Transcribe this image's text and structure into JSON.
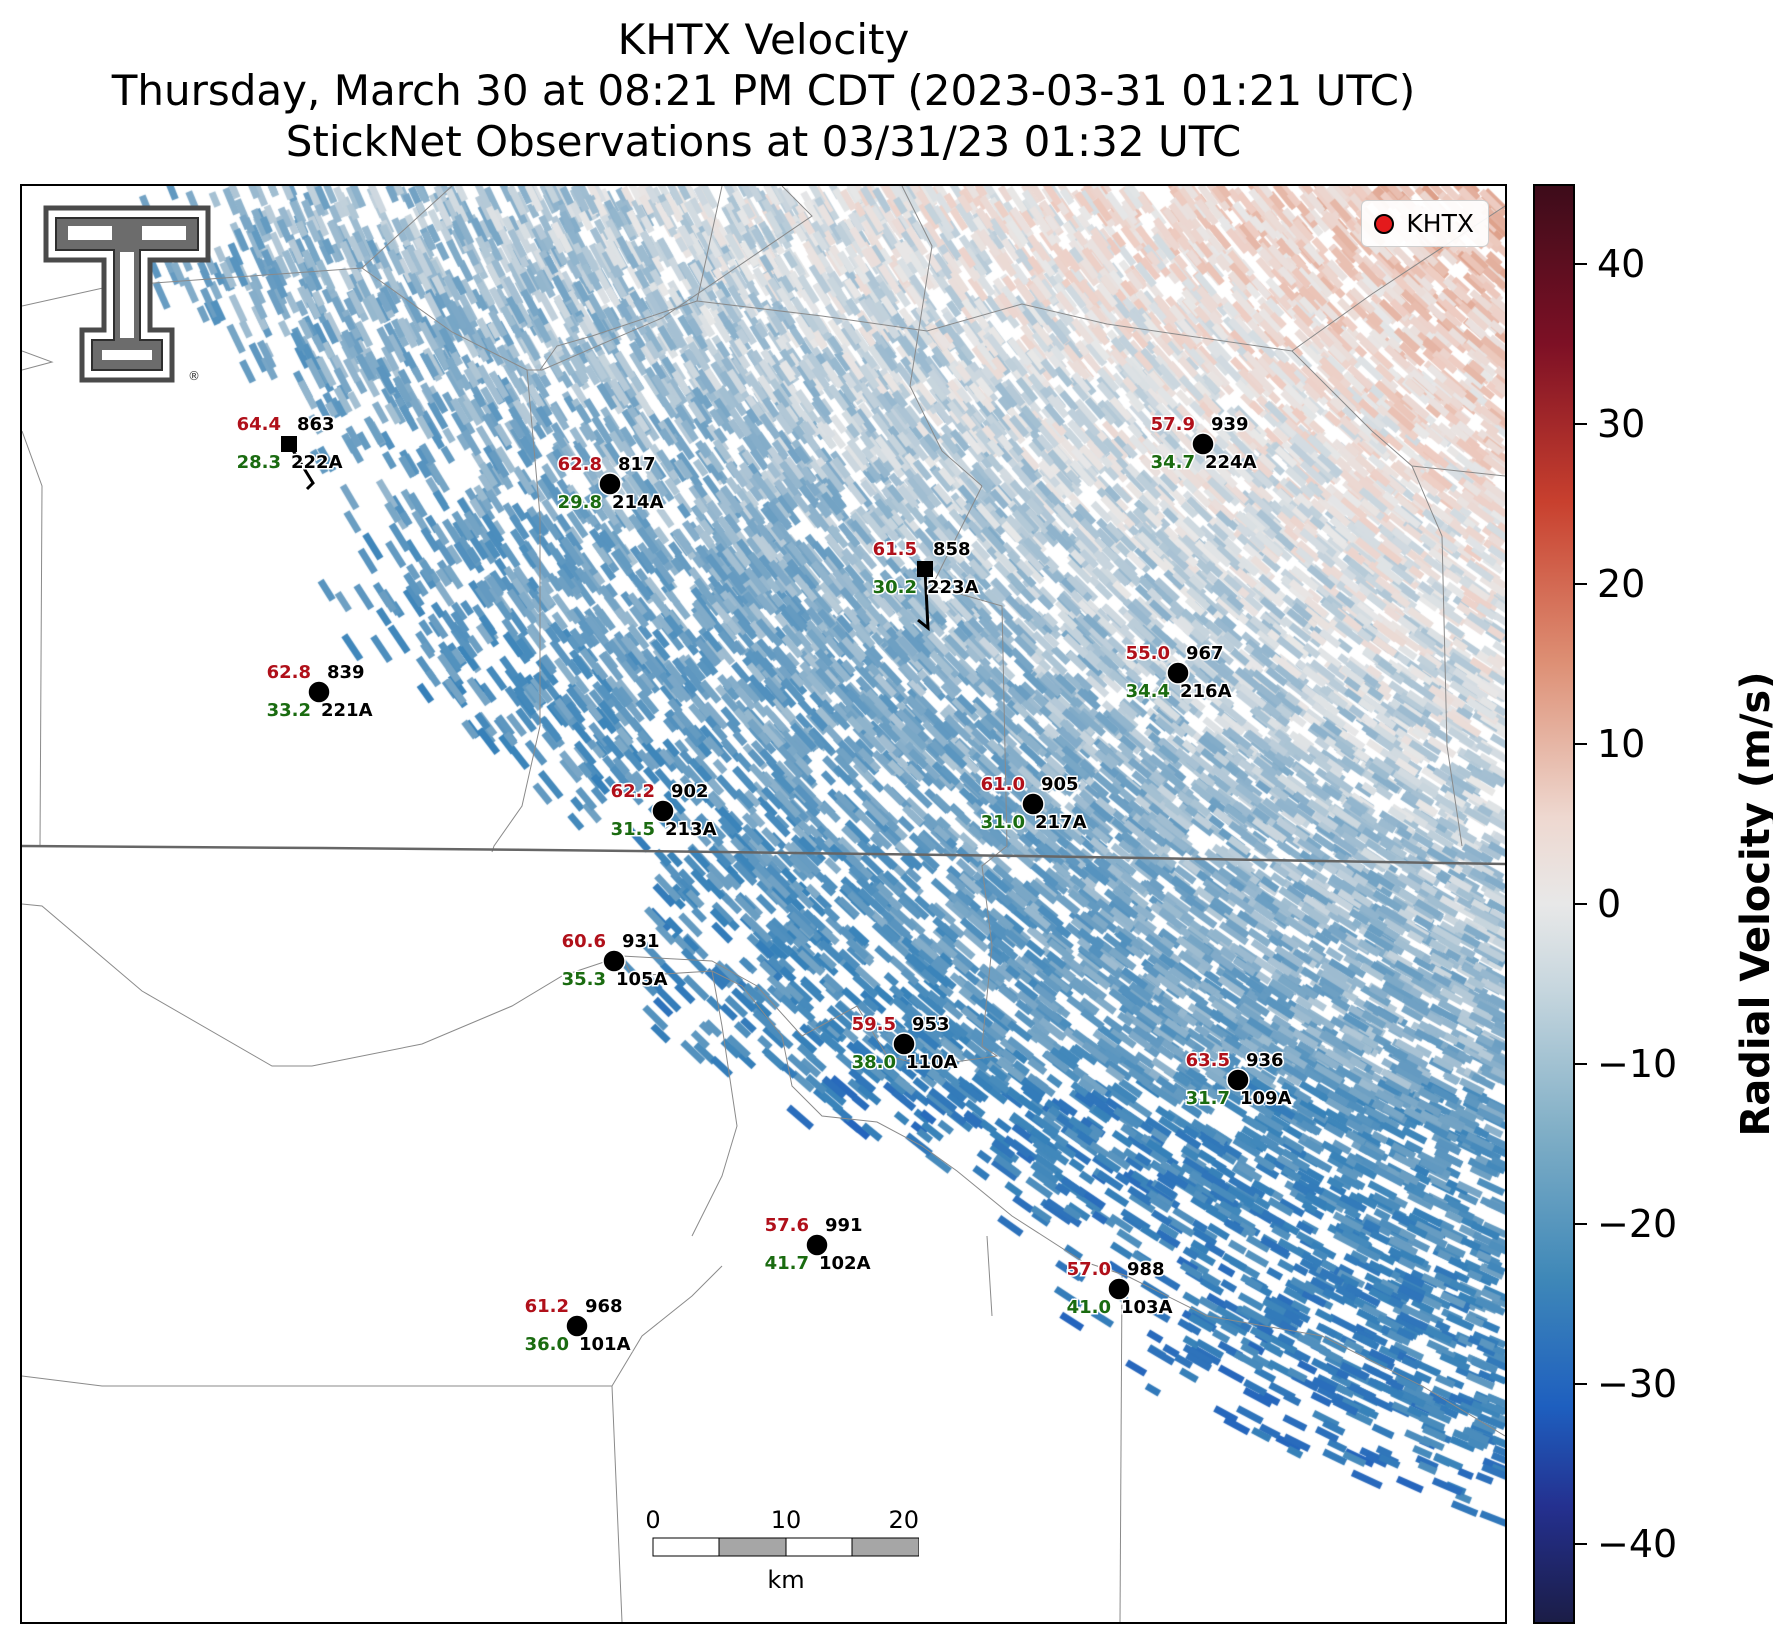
{
  "title": {
    "line1": "KHTX Velocity",
    "line2": "Thursday, March 30 at 08:21 PM CDT (2023-03-31 01:21 UTC)",
    "line3": "StickNet Observations at 03/31/23 01:32 UTC"
  },
  "legend": {
    "label": "KHTX",
    "marker_color": "#e41a1c"
  },
  "colorbar": {
    "title": "Radial Velocity (m/s)",
    "range": [
      -45,
      45
    ],
    "ticks": [
      "40",
      "30",
      "20",
      "10",
      "0",
      "−10",
      "−20",
      "−30",
      "−40"
    ],
    "tick_values": [
      40,
      30,
      20,
      10,
      0,
      -10,
      -20,
      -30,
      -40
    ]
  },
  "scalebar": {
    "labels": [
      "0",
      "10",
      "20"
    ],
    "unit": "km"
  },
  "logo": {
    "icon": "texas-tech-double-t-logo",
    "text": "®"
  },
  "colors": {
    "temp": "#b0101a",
    "dew": "#1a6b10",
    "station_text": "#000000",
    "boundary": "#7a7a7a"
  },
  "stations": [
    {
      "id": "222A",
      "temp": "64.4",
      "dew": "28.3",
      "press": "863",
      "marker": "square"
    },
    {
      "id": "214A",
      "temp": "62.8",
      "dew": "29.8",
      "press": "817",
      "marker": "circle"
    },
    {
      "id": "223A",
      "temp": "61.5",
      "dew": "30.2",
      "press": "858",
      "marker": "square"
    },
    {
      "id": "224A",
      "temp": "57.9",
      "dew": "34.7",
      "press": "939",
      "marker": "circle"
    },
    {
      "id": "221A",
      "temp": "62.8",
      "dew": "33.2",
      "press": "839",
      "marker": "circle"
    },
    {
      "id": "216A",
      "temp": "55.0",
      "dew": "34.4",
      "press": "967",
      "marker": "circle"
    },
    {
      "id": "213A",
      "temp": "62.2",
      "dew": "31.5",
      "press": "902",
      "marker": "circle"
    },
    {
      "id": "217A",
      "temp": "61.0",
      "dew": "31.0",
      "press": "905",
      "marker": "circle"
    },
    {
      "id": "105A",
      "temp": "60.6",
      "dew": "35.3",
      "press": "931",
      "marker": "circle"
    },
    {
      "id": "110A",
      "temp": "59.5",
      "dew": "38.0",
      "press": "953",
      "marker": "circle"
    },
    {
      "id": "109A",
      "temp": "63.5",
      "dew": "31.7",
      "press": "936",
      "marker": "circle"
    },
    {
      "id": "102A",
      "temp": "57.6",
      "dew": "41.7",
      "press": "991",
      "marker": "circle"
    },
    {
      "id": "103A",
      "temp": "57.0",
      "dew": "41.0",
      "press": "988",
      "marker": "circle"
    },
    {
      "id": "101A",
      "temp": "61.2",
      "dew": "36.0",
      "press": "968",
      "marker": "circle"
    }
  ]
}
